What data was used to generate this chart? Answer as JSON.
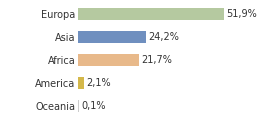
{
  "categories": [
    "Europa",
    "Asia",
    "Africa",
    "America",
    "Oceania"
  ],
  "values": [
    51.9,
    24.2,
    21.7,
    2.1,
    0.1
  ],
  "labels": [
    "51,9%",
    "24,2%",
    "21,7%",
    "2,1%",
    "0,1%"
  ],
  "bar_colors": [
    "#b5c9a0",
    "#6f8fbf",
    "#e8b98a",
    "#d4b84a",
    "#cccccc"
  ],
  "background_color": "#ffffff",
  "xlim": [
    0,
    70
  ],
  "label_fontsize": 7,
  "tick_fontsize": 7
}
